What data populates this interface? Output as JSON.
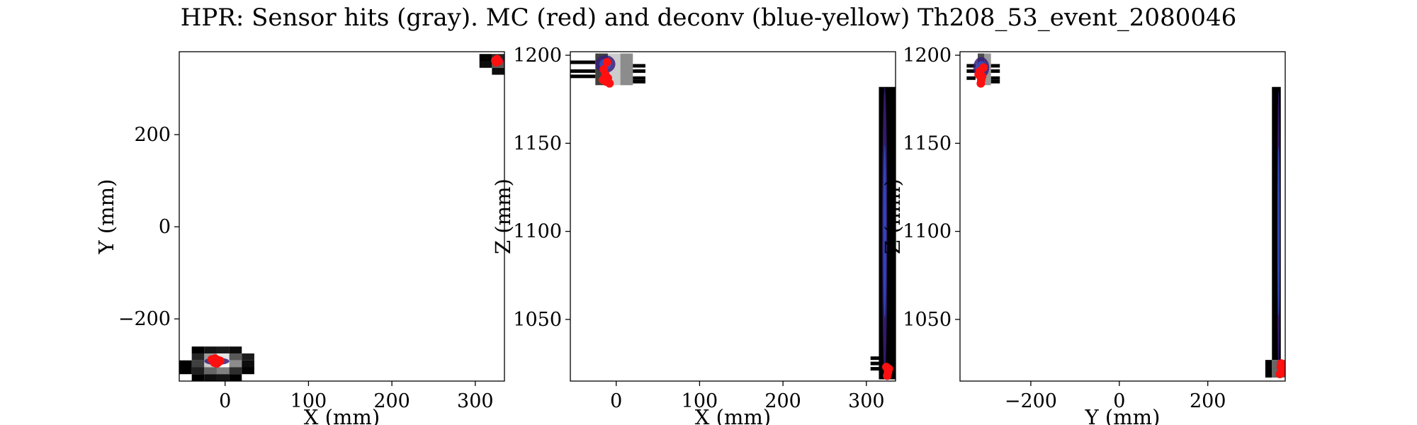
{
  "figure": {
    "title": "HPR: Sensor hits (gray). MC (red) and deconv (blue-yellow) Th208_53_event_2080046"
  },
  "colors": {
    "mc": "#ff1010",
    "deconv_dark": "#3a1f7a",
    "deconv_blue": "#2f5bd6",
    "sensor_white": "#ffffff",
    "sensor_black": "#000000"
  },
  "chart_data": [
    {
      "type": "heatmap",
      "id": "xy",
      "xlabel": "X (mm)",
      "ylabel": "Y (mm)",
      "xlim": [
        -55,
        335
      ],
      "ylim": [
        -335,
        380
      ],
      "xticks": [
        0,
        100,
        200,
        300
      ],
      "yticks": [
        -200,
        0,
        200
      ],
      "ytick_labels": [
        "−200",
        "0",
        "200"
      ],
      "sensor_hits": [
        {
          "x": -40,
          "y": -275,
          "w": 15,
          "h": 15,
          "v": 0.0
        },
        {
          "x": -25,
          "y": -275,
          "w": 15,
          "h": 15,
          "v": 0.08
        },
        {
          "x": -10,
          "y": -275,
          "w": 15,
          "h": 15,
          "v": 0.1
        },
        {
          "x": 5,
          "y": -275,
          "w": 15,
          "h": 15,
          "v": 0.05
        },
        {
          "x": -40,
          "y": -290,
          "w": 15,
          "h": 15,
          "v": 0.15
        },
        {
          "x": -25,
          "y": -290,
          "w": 15,
          "h": 15,
          "v": 0.6
        },
        {
          "x": -10,
          "y": -290,
          "w": 15,
          "h": 15,
          "v": 0.9
        },
        {
          "x": 5,
          "y": -290,
          "w": 15,
          "h": 15,
          "v": 0.35
        },
        {
          "x": 20,
          "y": -290,
          "w": 15,
          "h": 15,
          "v": 0.1
        },
        {
          "x": -55,
          "y": -305,
          "w": 15,
          "h": 15,
          "v": 0.0
        },
        {
          "x": -40,
          "y": -305,
          "w": 15,
          "h": 15,
          "v": 0.25
        },
        {
          "x": -25,
          "y": -305,
          "w": 15,
          "h": 15,
          "v": 0.8
        },
        {
          "x": -10,
          "y": -305,
          "w": 15,
          "h": 15,
          "v": 1.0
        },
        {
          "x": 5,
          "y": -305,
          "w": 15,
          "h": 15,
          "v": 0.55
        },
        {
          "x": 20,
          "y": -305,
          "w": 15,
          "h": 15,
          "v": 0.05
        },
        {
          "x": -55,
          "y": -320,
          "w": 15,
          "h": 15,
          "v": 0.0
        },
        {
          "x": -40,
          "y": -320,
          "w": 15,
          "h": 15,
          "v": 0.12
        },
        {
          "x": -25,
          "y": -320,
          "w": 15,
          "h": 15,
          "v": 0.4
        },
        {
          "x": -10,
          "y": -320,
          "w": 15,
          "h": 15,
          "v": 0.5
        },
        {
          "x": 5,
          "y": -320,
          "w": 15,
          "h": 15,
          "v": 0.18
        },
        {
          "x": 20,
          "y": -320,
          "w": 15,
          "h": 15,
          "v": 0.0
        },
        {
          "x": -40,
          "y": -335,
          "w": 15,
          "h": 15,
          "v": 0.0
        },
        {
          "x": -25,
          "y": -335,
          "w": 15,
          "h": 15,
          "v": 0.05
        },
        {
          "x": -10,
          "y": -335,
          "w": 15,
          "h": 15,
          "v": 0.08
        },
        {
          "x": 5,
          "y": -335,
          "w": 15,
          "h": 15,
          "v": 0.0
        },
        {
          "x": 305,
          "y": 360,
          "w": 15,
          "h": 15,
          "v": 0.0
        },
        {
          "x": 320,
          "y": 360,
          "w": 15,
          "h": 15,
          "v": 0.15
        },
        {
          "x": 305,
          "y": 345,
          "w": 15,
          "h": 15,
          "v": 0.05
        },
        {
          "x": 320,
          "y": 345,
          "w": 15,
          "h": 15,
          "v": 0.35
        },
        {
          "x": 320,
          "y": 330,
          "w": 15,
          "h": 15,
          "v": 0.05
        }
      ],
      "deconv": [
        {
          "x": -10,
          "y": -292,
          "rx": 15,
          "ry": 8
        },
        {
          "x": 327,
          "y": 360,
          "rx": 7,
          "ry": 8
        }
      ],
      "mc_hits": [
        {
          "x": -14,
          "y": -290
        },
        {
          "x": -11,
          "y": -292
        },
        {
          "x": -9,
          "y": -289
        },
        {
          "x": -13,
          "y": -295
        },
        {
          "x": -8,
          "y": -294
        },
        {
          "x": -16,
          "y": -288
        },
        {
          "x": -6,
          "y": -291
        },
        {
          "x": -12,
          "y": -286
        },
        {
          "x": -10,
          "y": -297
        },
        {
          "x": 324,
          "y": 361
        },
        {
          "x": 326,
          "y": 364
        },
        {
          "x": 328,
          "y": 359
        },
        {
          "x": 325,
          "y": 357
        }
      ]
    },
    {
      "type": "heatmap",
      "id": "xz",
      "xlabel": "X (mm)",
      "ylabel": "Z (mm)",
      "xlim": [
        -55,
        335
      ],
      "ylim": [
        1015,
        1202
      ],
      "xticks": [
        0,
        100,
        200,
        300
      ],
      "yticks": [
        1050,
        1100,
        1150,
        1200
      ],
      "ytick_labels": [
        "1050",
        "1100",
        "1150",
        "1200"
      ],
      "sensor_hits": [
        {
          "x": -55,
          "y": 1195,
          "w": 30,
          "h": 2,
          "v": 0.0
        },
        {
          "x": -55,
          "y": 1190,
          "w": 30,
          "h": 2,
          "v": 0.0
        },
        {
          "x": -55,
          "y": 1187,
          "w": 30,
          "h": 2,
          "v": 0.0
        },
        {
          "x": -25,
          "y": 1183,
          "w": 15,
          "h": 18,
          "v": 0.25
        },
        {
          "x": -10,
          "y": 1183,
          "w": 15,
          "h": 18,
          "v": 0.8
        },
        {
          "x": 5,
          "y": 1183,
          "w": 15,
          "h": 18,
          "v": 0.55
        },
        {
          "x": 20,
          "y": 1186,
          "w": 15,
          "h": 2,
          "v": 0.0
        },
        {
          "x": 20,
          "y": 1190,
          "w": 15,
          "h": 2,
          "v": 0.0
        },
        {
          "x": 20,
          "y": 1193,
          "w": 15,
          "h": 2,
          "v": 0.0
        },
        {
          "x": 20,
          "y": 1184,
          "w": 15,
          "h": 2,
          "v": 0.0
        },
        {
          "x": 315,
          "y": 1016,
          "w": 20,
          "h": 166,
          "v": 0.0
        },
        {
          "x": 305,
          "y": 1027,
          "w": 12,
          "h": 2,
          "v": 0.0
        },
        {
          "x": 305,
          "y": 1024,
          "w": 12,
          "h": 2,
          "v": 0.0
        },
        {
          "x": 305,
          "y": 1021,
          "w": 12,
          "h": 2,
          "v": 0.0
        }
      ],
      "deconv": [
        {
          "x": -13,
          "y": 1195,
          "rx": 12,
          "ry": 5
        },
        {
          "x": 322,
          "y": 1100,
          "rx": 3,
          "ry": 82
        }
      ],
      "mc_hits": [
        {
          "x": -15,
          "y": 1192
        },
        {
          "x": -13,
          "y": 1189
        },
        {
          "x": -10,
          "y": 1187
        },
        {
          "x": -12,
          "y": 1185
        },
        {
          "x": -16,
          "y": 1186
        },
        {
          "x": -8,
          "y": 1184
        },
        {
          "x": -11,
          "y": 1196
        },
        {
          "x": 324,
          "y": 1023
        },
        {
          "x": 326,
          "y": 1020
        },
        {
          "x": 325,
          "y": 1018
        },
        {
          "x": 327,
          "y": 1022
        }
      ]
    },
    {
      "type": "heatmap",
      "id": "yz",
      "xlabel": "Y (mm)",
      "ylabel": "Z (mm)",
      "xlim": [
        -360,
        375
      ],
      "ylim": [
        1015,
        1202
      ],
      "xticks": [
        -200,
        0,
        200
      ],
      "xtick_labels": [
        "−200",
        "0",
        "200"
      ],
      "yticks": [
        1050,
        1100,
        1150,
        1200
      ],
      "ytick_labels": [
        "1050",
        "1100",
        "1150",
        "1200"
      ],
      "sensor_hits": [
        {
          "x": -345,
          "y": 1193,
          "w": 20,
          "h": 2,
          "v": 0.0
        },
        {
          "x": -345,
          "y": 1190,
          "w": 20,
          "h": 2,
          "v": 0.0
        },
        {
          "x": -345,
          "y": 1186,
          "w": 20,
          "h": 2,
          "v": 0.0
        },
        {
          "x": -320,
          "y": 1183,
          "w": 15,
          "h": 18,
          "v": 0.3
        },
        {
          "x": -305,
          "y": 1183,
          "w": 15,
          "h": 18,
          "v": 0.6
        },
        {
          "x": -290,
          "y": 1186,
          "w": 20,
          "h": 2,
          "v": 0.0
        },
        {
          "x": -290,
          "y": 1190,
          "w": 20,
          "h": 2,
          "v": 0.0
        },
        {
          "x": -290,
          "y": 1193,
          "w": 20,
          "h": 2,
          "v": 0.0
        },
        {
          "x": -290,
          "y": 1184,
          "w": 20,
          "h": 2,
          "v": 0.0
        },
        {
          "x": 345,
          "y": 1027,
          "w": 20,
          "h": 155,
          "v": 0.0
        },
        {
          "x": 330,
          "y": 1017,
          "w": 15,
          "h": 10,
          "v": 0.0
        },
        {
          "x": 345,
          "y": 1017,
          "w": 30,
          "h": 10,
          "v": 0.4
        }
      ],
      "deconv": [
        {
          "x": -312,
          "y": 1193,
          "rx": 18,
          "ry": 6
        },
        {
          "x": 360,
          "y": 1100,
          "rx": 3,
          "ry": 80
        }
      ],
      "mc_hits": [
        {
          "x": -315,
          "y": 1191
        },
        {
          "x": -310,
          "y": 1188
        },
        {
          "x": -312,
          "y": 1186
        },
        {
          "x": -318,
          "y": 1189
        },
        {
          "x": -307,
          "y": 1193
        },
        {
          "x": -313,
          "y": 1184
        },
        {
          "x": 365,
          "y": 1023
        },
        {
          "x": 368,
          "y": 1020
        },
        {
          "x": 363,
          "y": 1019
        },
        {
          "x": 366,
          "y": 1025
        }
      ]
    }
  ]
}
